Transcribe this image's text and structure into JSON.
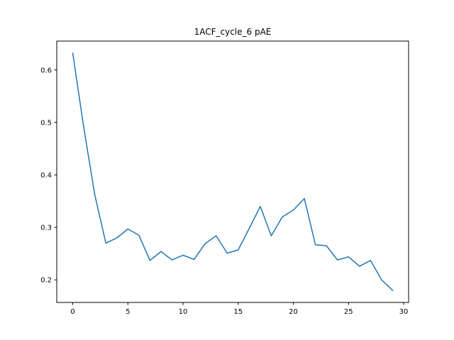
{
  "chart_data": {
    "type": "line",
    "title": "1ACF_cycle_6 pAE",
    "xlabel": "",
    "ylabel": "",
    "xlim": [
      -1.45,
      30.45
    ],
    "ylim": [
      0.157,
      0.655
    ],
    "xticks": [
      0,
      5,
      10,
      15,
      20,
      25,
      30
    ],
    "yticks": [
      0.2,
      0.3,
      0.4,
      0.5,
      0.6
    ],
    "grid": false,
    "legend": "none",
    "series": [
      {
        "color": "#1f77b4",
        "x": [
          0,
          1,
          2,
          3,
          4,
          5,
          6,
          7,
          8,
          9,
          10,
          11,
          12,
          13,
          14,
          15,
          16,
          17,
          18,
          19,
          20,
          21,
          22,
          23,
          24,
          25,
          26,
          27,
          28,
          29
        ],
        "y": [
          0.632,
          0.49,
          0.362,
          0.27,
          0.28,
          0.297,
          0.285,
          0.237,
          0.254,
          0.238,
          0.247,
          0.239,
          0.269,
          0.284,
          0.251,
          0.257,
          0.298,
          0.34,
          0.284,
          0.32,
          0.333,
          0.355,
          0.267,
          0.265,
          0.238,
          0.244,
          0.226,
          0.237,
          0.2,
          0.18
        ]
      }
    ]
  }
}
